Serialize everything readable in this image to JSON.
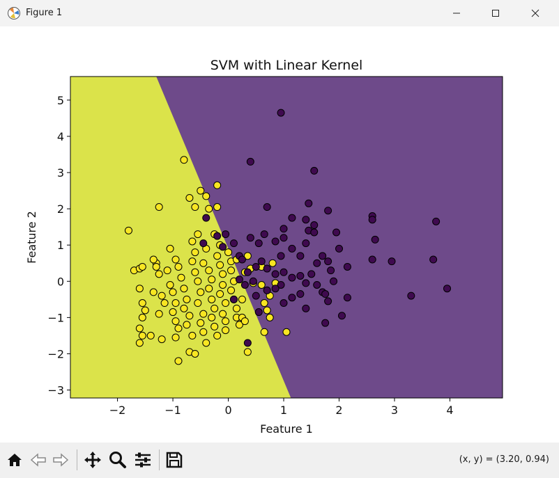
{
  "window": {
    "title": "Figure 1"
  },
  "toolbar": {
    "items": [
      "home-icon",
      "back-icon",
      "forward-icon",
      "pan-icon",
      "zoom-icon",
      "configure-subplots-icon",
      "save-icon"
    ],
    "coords_text": "(x, y) = (3.20, 0.94)"
  },
  "colors": {
    "region_yellow": "#dbe34a",
    "region_purple": "#6e4a8a",
    "point_yellow": "#f8e622",
    "point_purple": "#3f0a4f"
  },
  "chart_data": {
    "type": "scatter",
    "title": "SVM with Linear Kernel",
    "xlabel": "Feature 1",
    "ylabel": "Feature 2",
    "xlim": [
      -2.85,
      4.95
    ],
    "ylim": [
      -3.22,
      5.65
    ],
    "xticks": [
      -2,
      -1,
      0,
      1,
      2,
      3,
      4
    ],
    "yticks": [
      -3,
      -2,
      -1,
      0,
      1,
      2,
      3,
      4,
      5
    ],
    "grid": false,
    "decision_boundary": [
      [
        -1.3,
        5.65
      ],
      [
        1.13,
        -3.22
      ]
    ],
    "series": [
      {
        "points": [
          [
            -1.8,
            1.4
          ],
          [
            -1.7,
            0.3
          ],
          [
            -1.6,
            0.35
          ],
          [
            -1.55,
            0.4
          ],
          [
            -1.6,
            -0.2
          ],
          [
            -1.55,
            -0.6
          ],
          [
            -1.5,
            -0.8
          ],
          [
            -1.55,
            -1.0
          ],
          [
            -1.6,
            -1.3
          ],
          [
            -1.55,
            -1.5
          ],
          [
            -1.6,
            -1.7
          ],
          [
            -1.4,
            -1.5
          ],
          [
            -1.35,
            -0.3
          ],
          [
            -1.3,
            0.5
          ],
          [
            -1.35,
            0.6
          ],
          [
            -1.3,
            0.4
          ],
          [
            -1.25,
            0.2
          ],
          [
            -1.2,
            -0.4
          ],
          [
            -1.15,
            -0.6
          ],
          [
            -1.25,
            -0.9
          ],
          [
            -1.2,
            -1.6
          ],
          [
            -1.25,
            2.05
          ],
          [
            -1.1,
            0.3
          ],
          [
            -1.05,
            -0.1
          ],
          [
            -1.0,
            -0.3
          ],
          [
            -0.95,
            -0.6
          ],
          [
            -1.0,
            -0.85
          ],
          [
            -0.95,
            -1.1
          ],
          [
            -0.9,
            -1.3
          ],
          [
            -0.95,
            -1.55
          ],
          [
            -0.9,
            -2.2
          ],
          [
            -1.05,
            0.9
          ],
          [
            -0.95,
            0.6
          ],
          [
            -0.9,
            0.4
          ],
          [
            -0.85,
            0.1
          ],
          [
            -0.8,
            -0.2
          ],
          [
            -0.75,
            -0.5
          ],
          [
            -0.8,
            -0.75
          ],
          [
            -0.7,
            -0.95
          ],
          [
            -0.75,
            -1.2
          ],
          [
            -0.65,
            -1.5
          ],
          [
            -0.7,
            -1.95
          ],
          [
            -0.6,
            -2.0
          ],
          [
            -0.8,
            3.35
          ],
          [
            -0.7,
            2.3
          ],
          [
            -0.6,
            2.05
          ],
          [
            -0.65,
            1.1
          ],
          [
            -0.55,
            1.3
          ],
          [
            -0.6,
            0.8
          ],
          [
            -0.65,
            0.55
          ],
          [
            -0.6,
            0.25
          ],
          [
            -0.55,
            0.0
          ],
          [
            -0.5,
            -0.3
          ],
          [
            -0.55,
            -0.6
          ],
          [
            -0.45,
            -0.9
          ],
          [
            -0.5,
            -1.15
          ],
          [
            -0.45,
            -1.4
          ],
          [
            -0.4,
            -1.7
          ],
          [
            -0.5,
            2.5
          ],
          [
            -0.4,
            2.35
          ],
          [
            -0.35,
            2.0
          ],
          [
            -0.4,
            0.9
          ],
          [
            -0.45,
            0.5
          ],
          [
            -0.35,
            0.3
          ],
          [
            -0.3,
            0.05
          ],
          [
            -0.35,
            -0.2
          ],
          [
            -0.3,
            -0.5
          ],
          [
            -0.25,
            -0.75
          ],
          [
            -0.3,
            -1.0
          ],
          [
            -0.25,
            -1.25
          ],
          [
            -0.2,
            -1.5
          ],
          [
            -0.2,
            2.65
          ],
          [
            -0.2,
            2.05
          ],
          [
            -0.25,
            1.3
          ],
          [
            -0.15,
            1.0
          ],
          [
            -0.2,
            0.7
          ],
          [
            -0.15,
            0.45
          ],
          [
            -0.1,
            0.2
          ],
          [
            -0.1,
            -0.1
          ],
          [
            -0.15,
            -0.35
          ],
          [
            -0.05,
            -0.6
          ],
          [
            -0.1,
            -0.9
          ],
          [
            -0.05,
            -1.1
          ],
          [
            -0.05,
            -1.35
          ],
          [
            0.0,
            0.8
          ],
          [
            0.05,
            0.55
          ],
          [
            0.05,
            0.3
          ],
          [
            0.1,
            0.0
          ],
          [
            0.05,
            -0.25
          ],
          [
            0.1,
            -0.5
          ],
          [
            0.15,
            -0.75
          ],
          [
            0.15,
            -1.0
          ],
          [
            0.2,
            -1.2
          ],
          [
            0.25,
            -1.0
          ],
          [
            0.15,
            0.6
          ],
          [
            0.3,
            0.25
          ],
          [
            0.25,
            -0.5
          ],
          [
            0.3,
            -1.1
          ],
          [
            0.35,
            0.7
          ],
          [
            0.4,
            0.35
          ],
          [
            0.45,
            -0.05
          ],
          [
            0.35,
            -1.95
          ],
          [
            0.6,
            0.4
          ],
          [
            0.6,
            -0.1
          ],
          [
            0.65,
            -0.6
          ],
          [
            0.7,
            -0.8
          ],
          [
            0.75,
            -1.0
          ],
          [
            0.75,
            -0.4
          ],
          [
            0.8,
            0.5
          ],
          [
            0.85,
            -0.05
          ],
          [
            0.65,
            -1.4
          ],
          [
            1.05,
            -1.4
          ]
        ],
        "color": "#f8e622"
      },
      {
        "points": [
          [
            0.95,
            4.65
          ],
          [
            0.4,
            3.3
          ],
          [
            1.55,
            3.05
          ],
          [
            0.7,
            2.05
          ],
          [
            1.45,
            2.15
          ],
          [
            1.8,
            1.95
          ],
          [
            1.55,
            1.55
          ],
          [
            1.15,
            1.75
          ],
          [
            1.4,
            1.7
          ],
          [
            1.95,
            1.35
          ],
          [
            2.6,
            1.8
          ],
          [
            2.6,
            1.7
          ],
          [
            3.75,
            1.65
          ],
          [
            2.65,
            1.15
          ],
          [
            -0.05,
            1.3
          ],
          [
            0.1,
            1.05
          ],
          [
            -0.1,
            0.95
          ],
          [
            -0.2,
            1.25
          ],
          [
            0.2,
            0.7
          ],
          [
            0.4,
            1.2
          ],
          [
            0.55,
            1.05
          ],
          [
            0.65,
            1.3
          ],
          [
            0.85,
            1.1
          ],
          [
            0.95,
            0.7
          ],
          [
            1.0,
            1.45
          ],
          [
            1.0,
            1.2
          ],
          [
            1.15,
            0.9
          ],
          [
            1.3,
            0.7
          ],
          [
            1.4,
            1.05
          ],
          [
            1.45,
            1.4
          ],
          [
            1.55,
            1.35
          ],
          [
            1.6,
            0.5
          ],
          [
            1.7,
            0.7
          ],
          [
            1.8,
            0.55
          ],
          [
            1.85,
            0.3
          ],
          [
            2.0,
            0.9
          ],
          [
            2.15,
            0.4
          ],
          [
            2.6,
            0.6
          ],
          [
            2.95,
            0.55
          ],
          [
            3.7,
            0.6
          ],
          [
            0.25,
            0.6
          ],
          [
            0.35,
            0.25
          ],
          [
            0.5,
            0.4
          ],
          [
            0.6,
            0.55
          ],
          [
            0.7,
            0.35
          ],
          [
            0.85,
            0.2
          ],
          [
            1.0,
            0.25
          ],
          [
            1.15,
            0.1
          ],
          [
            1.3,
            0.15
          ],
          [
            1.4,
            -0.05
          ],
          [
            1.5,
            0.2
          ],
          [
            1.6,
            -0.1
          ],
          [
            1.7,
            -0.3
          ],
          [
            1.75,
            -0.35
          ],
          [
            1.8,
            -0.55
          ],
          [
            1.9,
            0.0
          ],
          [
            2.15,
            -0.45
          ],
          [
            2.05,
            -0.95
          ],
          [
            1.75,
            -1.15
          ],
          [
            1.4,
            -0.75
          ],
          [
            1.3,
            -0.35
          ],
          [
            1.15,
            -0.45
          ],
          [
            1.0,
            -0.6
          ],
          [
            0.95,
            -0.1
          ],
          [
            0.85,
            -0.2
          ],
          [
            0.7,
            -0.25
          ],
          [
            0.5,
            -0.4
          ],
          [
            0.45,
            0.0
          ],
          [
            0.3,
            -0.1
          ],
          [
            0.2,
            0.05
          ],
          [
            0.55,
            -0.85
          ],
          [
            0.35,
            -1.7
          ],
          [
            3.3,
            -0.4
          ],
          [
            3.95,
            -0.2
          ],
          [
            -0.4,
            1.75
          ],
          [
            -0.45,
            1.05
          ],
          [
            0.1,
            -0.5
          ]
        ],
        "color": "#3f0a4f"
      }
    ]
  }
}
